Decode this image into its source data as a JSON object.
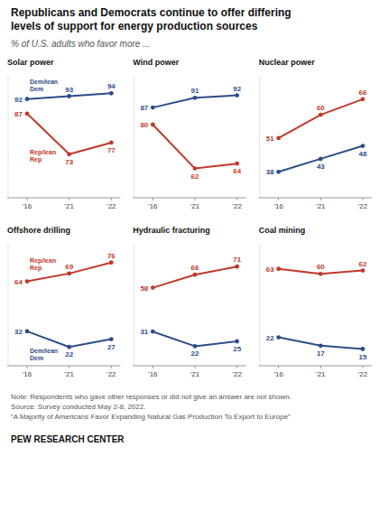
{
  "title": "Republicans and Democrats continue to offer differing\nlevels of support for energy production sources",
  "subtitle": "% of U.S. adults who favor more ...",
  "note": "Note: Respondents who gave other responses or did not give an answer are not shown.\nSource: Survey conducted May 2-8, 2022.\n“A Majority of Americans Favor Expanding Natural Gas Production To Export to Europe”",
  "source": "PEW RESEARCH CENTER",
  "chart_data": [
    {
      "type": "line",
      "title": "Solar power",
      "categories": [
        "'16",
        "'21",
        "'22"
      ],
      "series": [
        {
          "name": "Dem/lean Dem",
          "color": "#2e4d8a",
          "values": [
            92,
            93,
            94
          ]
        },
        {
          "name": "Rep/lean Rep",
          "color": "#c0392b",
          "values": [
            87,
            73,
            77
          ]
        }
      ],
      "ylim": [
        58,
        100
      ],
      "data_labels": true,
      "tick_labels": "x",
      "marker": "circle"
    },
    {
      "type": "line",
      "title": "Wind power",
      "categories": [
        "'16",
        "'21",
        "'22"
      ],
      "series": [
        {
          "color": "#2e4d8a",
          "values": [
            87,
            91,
            92
          ]
        },
        {
          "color": "#c0392b",
          "values": [
            80,
            62,
            64
          ]
        }
      ],
      "ylim": [
        50,
        100
      ],
      "data_labels": true,
      "tick_labels": "x",
      "marker": "circle"
    },
    {
      "type": "line",
      "title": "Nuclear power",
      "categories": [
        "'16",
        "'21",
        "'22"
      ],
      "series": [
        {
          "color": "#2e4d8a",
          "values": [
            38,
            43,
            48
          ]
        },
        {
          "color": "#c0392b",
          "values": [
            51,
            60,
            66
          ]
        }
      ],
      "ylim": [
        28,
        75
      ],
      "data_labels": true,
      "tick_labels": "x",
      "marker": "circle"
    },
    {
      "type": "line",
      "title": "Offshore drilling",
      "categories": [
        "'16",
        "'21",
        "'22"
      ],
      "series": [
        {
          "name": "Dem/lean Dem",
          "color": "#2e4d8a",
          "values": [
            32,
            22,
            27
          ]
        },
        {
          "name": "Rep/lean Rep",
          "color": "#c0392b",
          "values": [
            64,
            69,
            76
          ]
        }
      ],
      "ylim": [
        10,
        88
      ],
      "data_labels": true,
      "tick_labels": "x",
      "marker": "circle"
    },
    {
      "type": "line",
      "title": "Hydraulic fracturing",
      "categories": [
        "'16",
        "'21",
        "'22"
      ],
      "series": [
        {
          "color": "#2e4d8a",
          "values": [
            31,
            22,
            25
          ]
        },
        {
          "color": "#c0392b",
          "values": [
            58,
            66,
            71
          ]
        }
      ],
      "ylim": [
        10,
        85
      ],
      "data_labels": true,
      "tick_labels": "x",
      "marker": "circle"
    },
    {
      "type": "line",
      "title": "Coal mining",
      "categories": [
        "'16",
        "'21",
        "'22"
      ],
      "series": [
        {
          "color": "#2e4d8a",
          "values": [
            22,
            17,
            15
          ]
        },
        {
          "color": "#c0392b",
          "values": [
            63,
            60,
            62
          ]
        }
      ],
      "ylim": [
        5,
        78
      ],
      "data_labels": true,
      "tick_labels": "x",
      "marker": "circle"
    }
  ]
}
